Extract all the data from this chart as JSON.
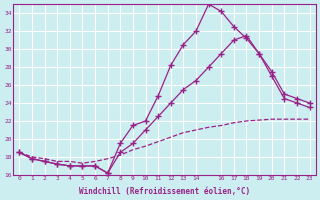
{
  "background_color": "#cceef0",
  "grid_color": "#ffffff",
  "line_color": "#992288",
  "xlabel": "Windchill (Refroidissement éolien,°C)",
  "xlim": [
    -0.5,
    23.5
  ],
  "ylim": [
    16,
    35
  ],
  "yticks": [
    16,
    18,
    20,
    22,
    24,
    26,
    28,
    30,
    32,
    34
  ],
  "xticks": [
    0,
    1,
    2,
    3,
    4,
    5,
    6,
    7,
    8,
    9,
    10,
    11,
    12,
    13,
    14,
    16,
    17,
    18,
    19,
    20,
    21,
    22,
    23
  ],
  "line1_x": [
    0,
    1,
    2,
    3,
    4,
    5,
    6,
    7,
    8,
    9,
    10,
    11,
    12,
    13,
    14,
    15,
    16,
    17,
    18,
    19,
    20,
    21,
    22,
    23
  ],
  "line1_y": [
    18.5,
    17.8,
    17.5,
    17.2,
    17.0,
    17.0,
    17.0,
    16.2,
    19.5,
    21.5,
    22.0,
    24.8,
    28.2,
    30.5,
    32.0,
    35.0,
    34.2,
    32.5,
    31.2,
    29.5,
    27.0,
    24.5,
    24.0,
    23.5
  ],
  "line2_x": [
    0,
    1,
    2,
    3,
    4,
    5,
    6,
    7,
    8,
    9,
    10,
    11,
    12,
    13,
    14,
    15,
    16,
    17,
    18,
    19,
    20,
    21,
    22,
    23
  ],
  "line2_y": [
    18.5,
    17.8,
    17.5,
    17.2,
    17.0,
    17.0,
    17.0,
    16.2,
    18.5,
    19.5,
    21.0,
    22.5,
    24.0,
    25.5,
    26.5,
    28.0,
    29.5,
    31.0,
    31.5,
    29.5,
    27.5,
    25.0,
    24.5,
    24.0
  ],
  "line3_x": [
    0,
    1,
    2,
    3,
    4,
    5,
    6,
    7,
    8,
    9,
    10,
    11,
    12,
    13,
    14,
    15,
    16,
    17,
    18,
    19,
    20,
    21,
    22,
    23
  ],
  "line3_y": [
    18.5,
    18.0,
    17.8,
    17.5,
    17.5,
    17.3,
    17.5,
    17.8,
    18.2,
    18.8,
    19.2,
    19.7,
    20.2,
    20.7,
    21.0,
    21.3,
    21.5,
    21.8,
    22.0,
    22.1,
    22.2,
    22.2,
    22.2,
    22.2
  ]
}
